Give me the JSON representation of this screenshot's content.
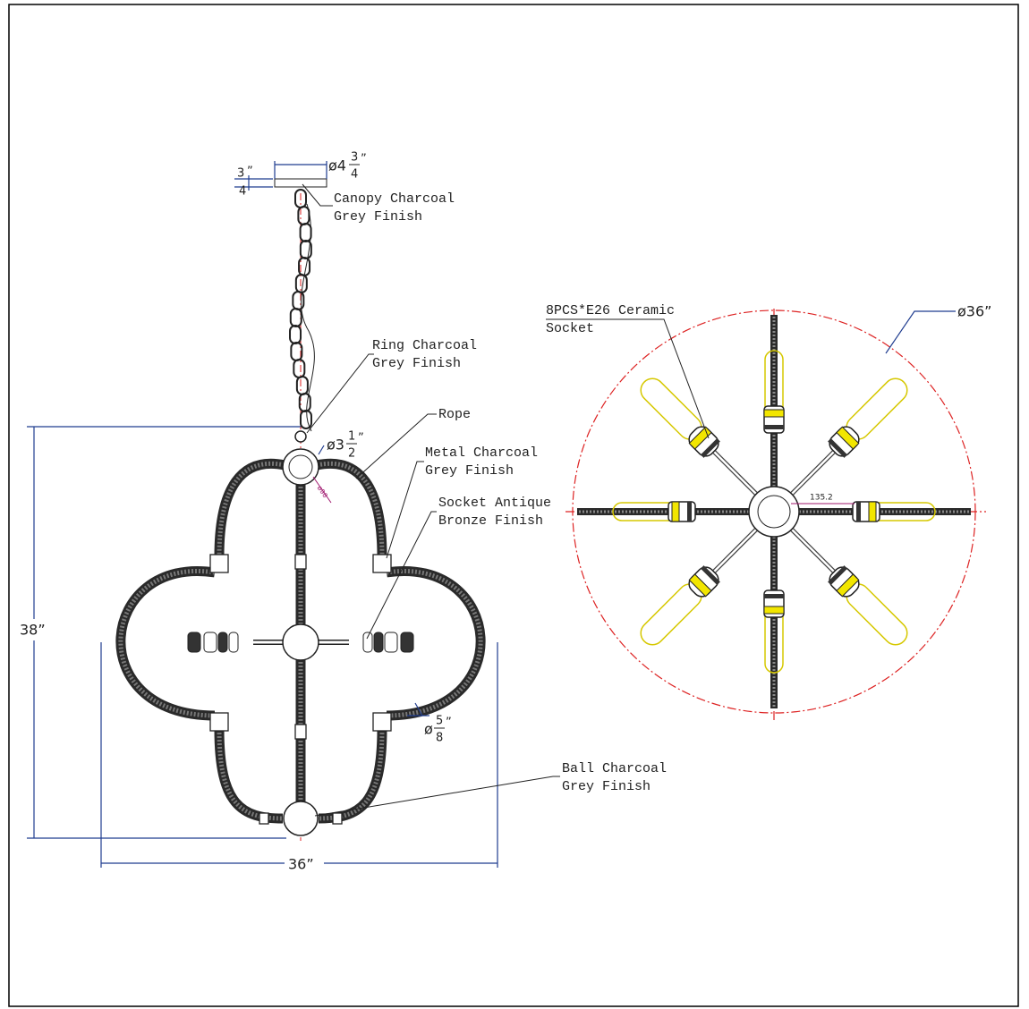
{
  "front_view": {
    "canopy_diameter": {
      "whole": "ø4",
      "numerator": "3",
      "denominator": "4",
      "unit": "”"
    },
    "canopy_height": {
      "numerator": "3",
      "denominator": "4",
      "unit": "”"
    },
    "canopy_label": [
      "Canopy Charcoal",
      "Grey Finish"
    ],
    "ring_label": [
      "Ring Charcoal",
      "Grey Finish"
    ],
    "rope_label": "Rope",
    "ring_diameter": {
      "whole": "ø3",
      "numerator": "1",
      "denominator": "2",
      "unit": "”"
    },
    "hub_diameter": "ø90",
    "metal_label": [
      "Metal Charcoal",
      "Grey Finish"
    ],
    "socket_label": [
      "Socket Antique",
      "Bronze Finish"
    ],
    "height": "38”",
    "rope_diameter": {
      "whole": "ø",
      "numerator": "5",
      "denominator": "8",
      "unit": "”"
    },
    "ball_label": [
      "Ball Charcoal",
      "Grey Finish"
    ],
    "width": "36”"
  },
  "top_view": {
    "socket_label": [
      "8PCS*E26 Ceramic",
      "Socket"
    ],
    "diameter": "ø36”",
    "arm_length": "135.2"
  }
}
